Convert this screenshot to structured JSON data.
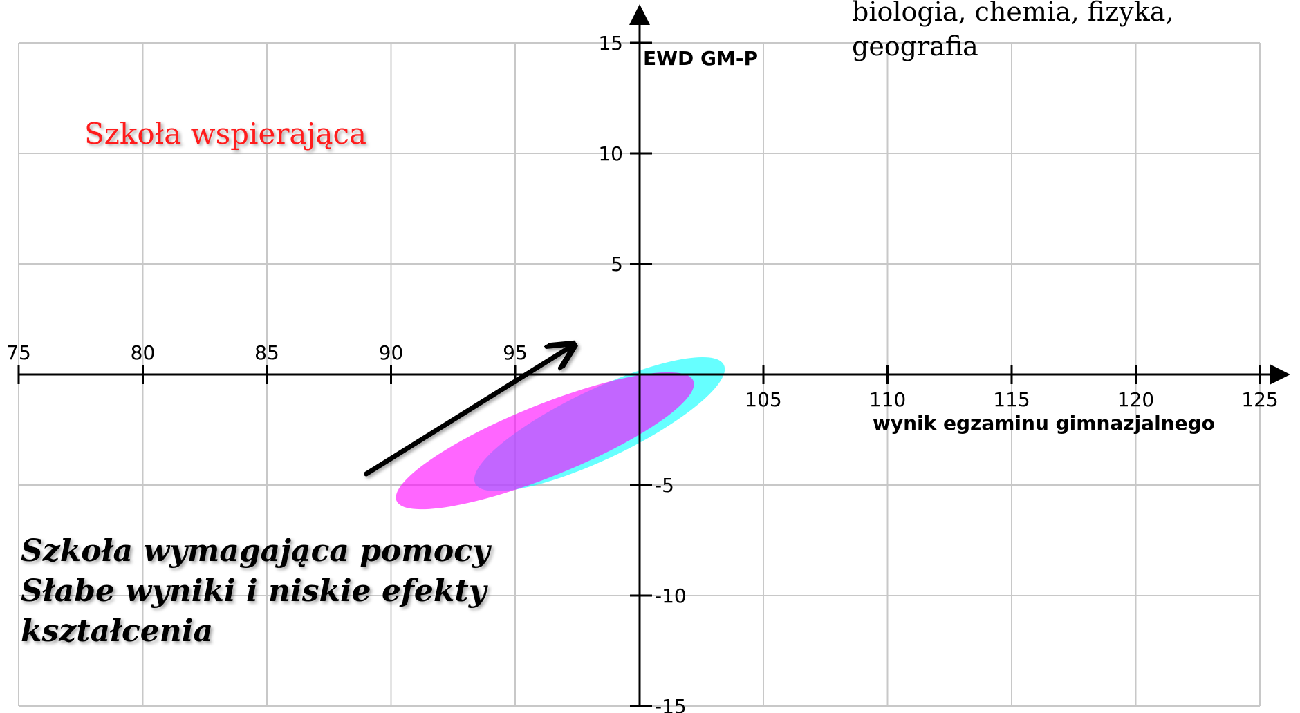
{
  "chart_data": {
    "type": "scatter",
    "xlabel": "wynik egzaminu gimnazjalnego",
    "ylabel": "EWD GM-P",
    "xlim": [
      75,
      125
    ],
    "ylim": [
      -15,
      15
    ],
    "x_ticks": [
      75,
      80,
      85,
      90,
      95,
      105,
      110,
      115,
      120,
      125
    ],
    "y_ticks": [
      15,
      10,
      5,
      -5,
      -10,
      -15
    ],
    "grid": true,
    "subject_label_lines": [
      "biologia, chemia, fizyka,",
      "geografia"
    ],
    "annotations": {
      "support": "Szkoła wspierająca",
      "help_lines": [
        "Szkoła wymagająca pomocy",
        "Słabe wyniki i niskie efekty",
        "kształcenia"
      ]
    },
    "ellipses": [
      {
        "center_x": 98.4,
        "center_y": -2.25,
        "rx": 5.55,
        "ry": 1.57,
        "angle_deg": -25.5,
        "color": "#00ffff",
        "opacity": 0.6
      },
      {
        "center_x": 96.2,
        "center_y": -3.0,
        "rx": 6.45,
        "ry": 1.62,
        "angle_deg": -22.0,
        "color": "#ff00ff",
        "opacity": 0.6
      }
    ],
    "arrow": {
      "from": [
        89.0,
        -4.5
      ],
      "to": [
        97.3,
        1.3
      ],
      "color": "#000000"
    }
  }
}
